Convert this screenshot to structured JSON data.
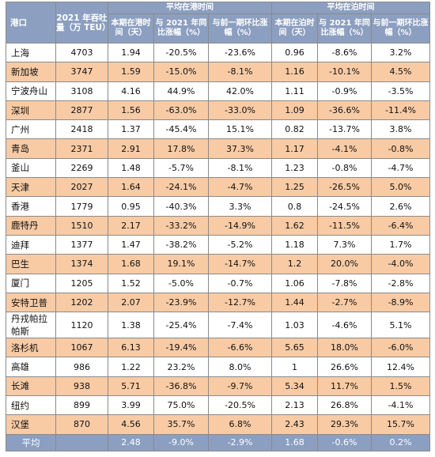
{
  "header": {
    "port": "港口",
    "throughput": "2021 年吞吐量（万 TEU）",
    "port_time_group": "平均在港时间",
    "berth_time_group": "平均在泊时间",
    "current_period": "本期在港时间（天）",
    "yoy_2021": "与 2021 年同比涨幅（%）",
    "mom_prev": "与前一期环比涨幅（%）",
    "berth_current": "本期在泊时间（天）",
    "berth_yoy": "与 2021 年同比涨幅（%）",
    "berth_mom": "与前一期环比涨幅（%）"
  },
  "rows": [
    [
      "上海",
      "4703",
      "1.94",
      "-20.5%",
      "-23.6%",
      "0.96",
      "-8.6%",
      "3.2%"
    ],
    [
      "新加坡",
      "3747",
      "1.59",
      "-15.0%",
      "-8.1%",
      "1.16",
      "-10.1%",
      "4.5%"
    ],
    [
      "宁波舟山",
      "3108",
      "4.16",
      "44.9%",
      "42.0%",
      "1.11",
      "-0.9%",
      "-3.5%"
    ],
    [
      "深圳",
      "2877",
      "1.56",
      "-63.0%",
      "-33.0%",
      "1.09",
      "-36.6%",
      "-11.4%"
    ],
    [
      "广州",
      "2418",
      "1.37",
      "-45.4%",
      "15.1%",
      "0.82",
      "-13.7%",
      "3.8%"
    ],
    [
      "青岛",
      "2371",
      "2.91",
      "17.8%",
      "37.3%",
      "1.17",
      "-4.1%",
      "-0.8%"
    ],
    [
      "釜山",
      "2269",
      "1.48",
      "-5.7%",
      "-8.1%",
      "1.23",
      "-0.8%",
      "-4.7%"
    ],
    [
      "天津",
      "2027",
      "1.64",
      "-24.1%",
      "-4.7%",
      "1.25",
      "-26.5%",
      "5.0%"
    ],
    [
      "香港",
      "1779",
      "0.95",
      "-40.3%",
      "3.3%",
      "0.8",
      "-24.5%",
      "2.6%"
    ],
    [
      "鹿特丹",
      "1510",
      "2.17",
      "-33.2%",
      "-14.9%",
      "1.62",
      "-11.5%",
      "-6.4%"
    ],
    [
      "迪拜",
      "1377",
      "1.47",
      "-38.2%",
      "-5.2%",
      "1.18",
      "7.3%",
      "1.7%"
    ],
    [
      "巴生",
      "1374",
      "1.68",
      "19.1%",
      "-14.7%",
      "1.2",
      "20.0%",
      "-4.0%"
    ],
    [
      "厦门",
      "1205",
      "1.52",
      "-5.0%",
      "-0.7%",
      "1.06",
      "-7.8%",
      "-2.8%"
    ],
    [
      "安特卫普",
      "1202",
      "2.07",
      "-23.9%",
      "-12.7%",
      "1.44",
      "-2.7%",
      "-8.9%"
    ],
    [
      "丹戎帕拉帕斯",
      "1120",
      "1.38",
      "-25.4%",
      "-7.4%",
      "1.03",
      "-4.6%",
      "5.1%"
    ],
    [
      "洛杉机",
      "1067",
      "6.13",
      "-19.4%",
      "-6.6%",
      "5.65",
      "18.0%",
      "-6.0%"
    ],
    [
      "高雄",
      "986",
      "1.22",
      "23.2%",
      "8.0%",
      "1",
      "26.6%",
      "12.4%"
    ],
    [
      "长滩",
      "938",
      "5.71",
      "-36.8%",
      "-9.7%",
      "5.34",
      "11.7%",
      "1.5%"
    ],
    [
      "纽约",
      "899",
      "3.99",
      "75.0%",
      "-20.5%",
      "2.13",
      "26.8%",
      "-4.1%"
    ],
    [
      "汉堡",
      "870",
      "4.56",
      "35.7%",
      "6.8%",
      "2.43",
      "29.3%",
      "15.7%"
    ]
  ],
  "average": [
    "平均",
    "",
    "2.48",
    "-9.0%",
    "-2.9%",
    "1.68",
    "-0.6%",
    "0.2%"
  ],
  "colors": {
    "header": "#8c9fc0",
    "stripe": "#f8cba5",
    "row": "#ffffff"
  }
}
